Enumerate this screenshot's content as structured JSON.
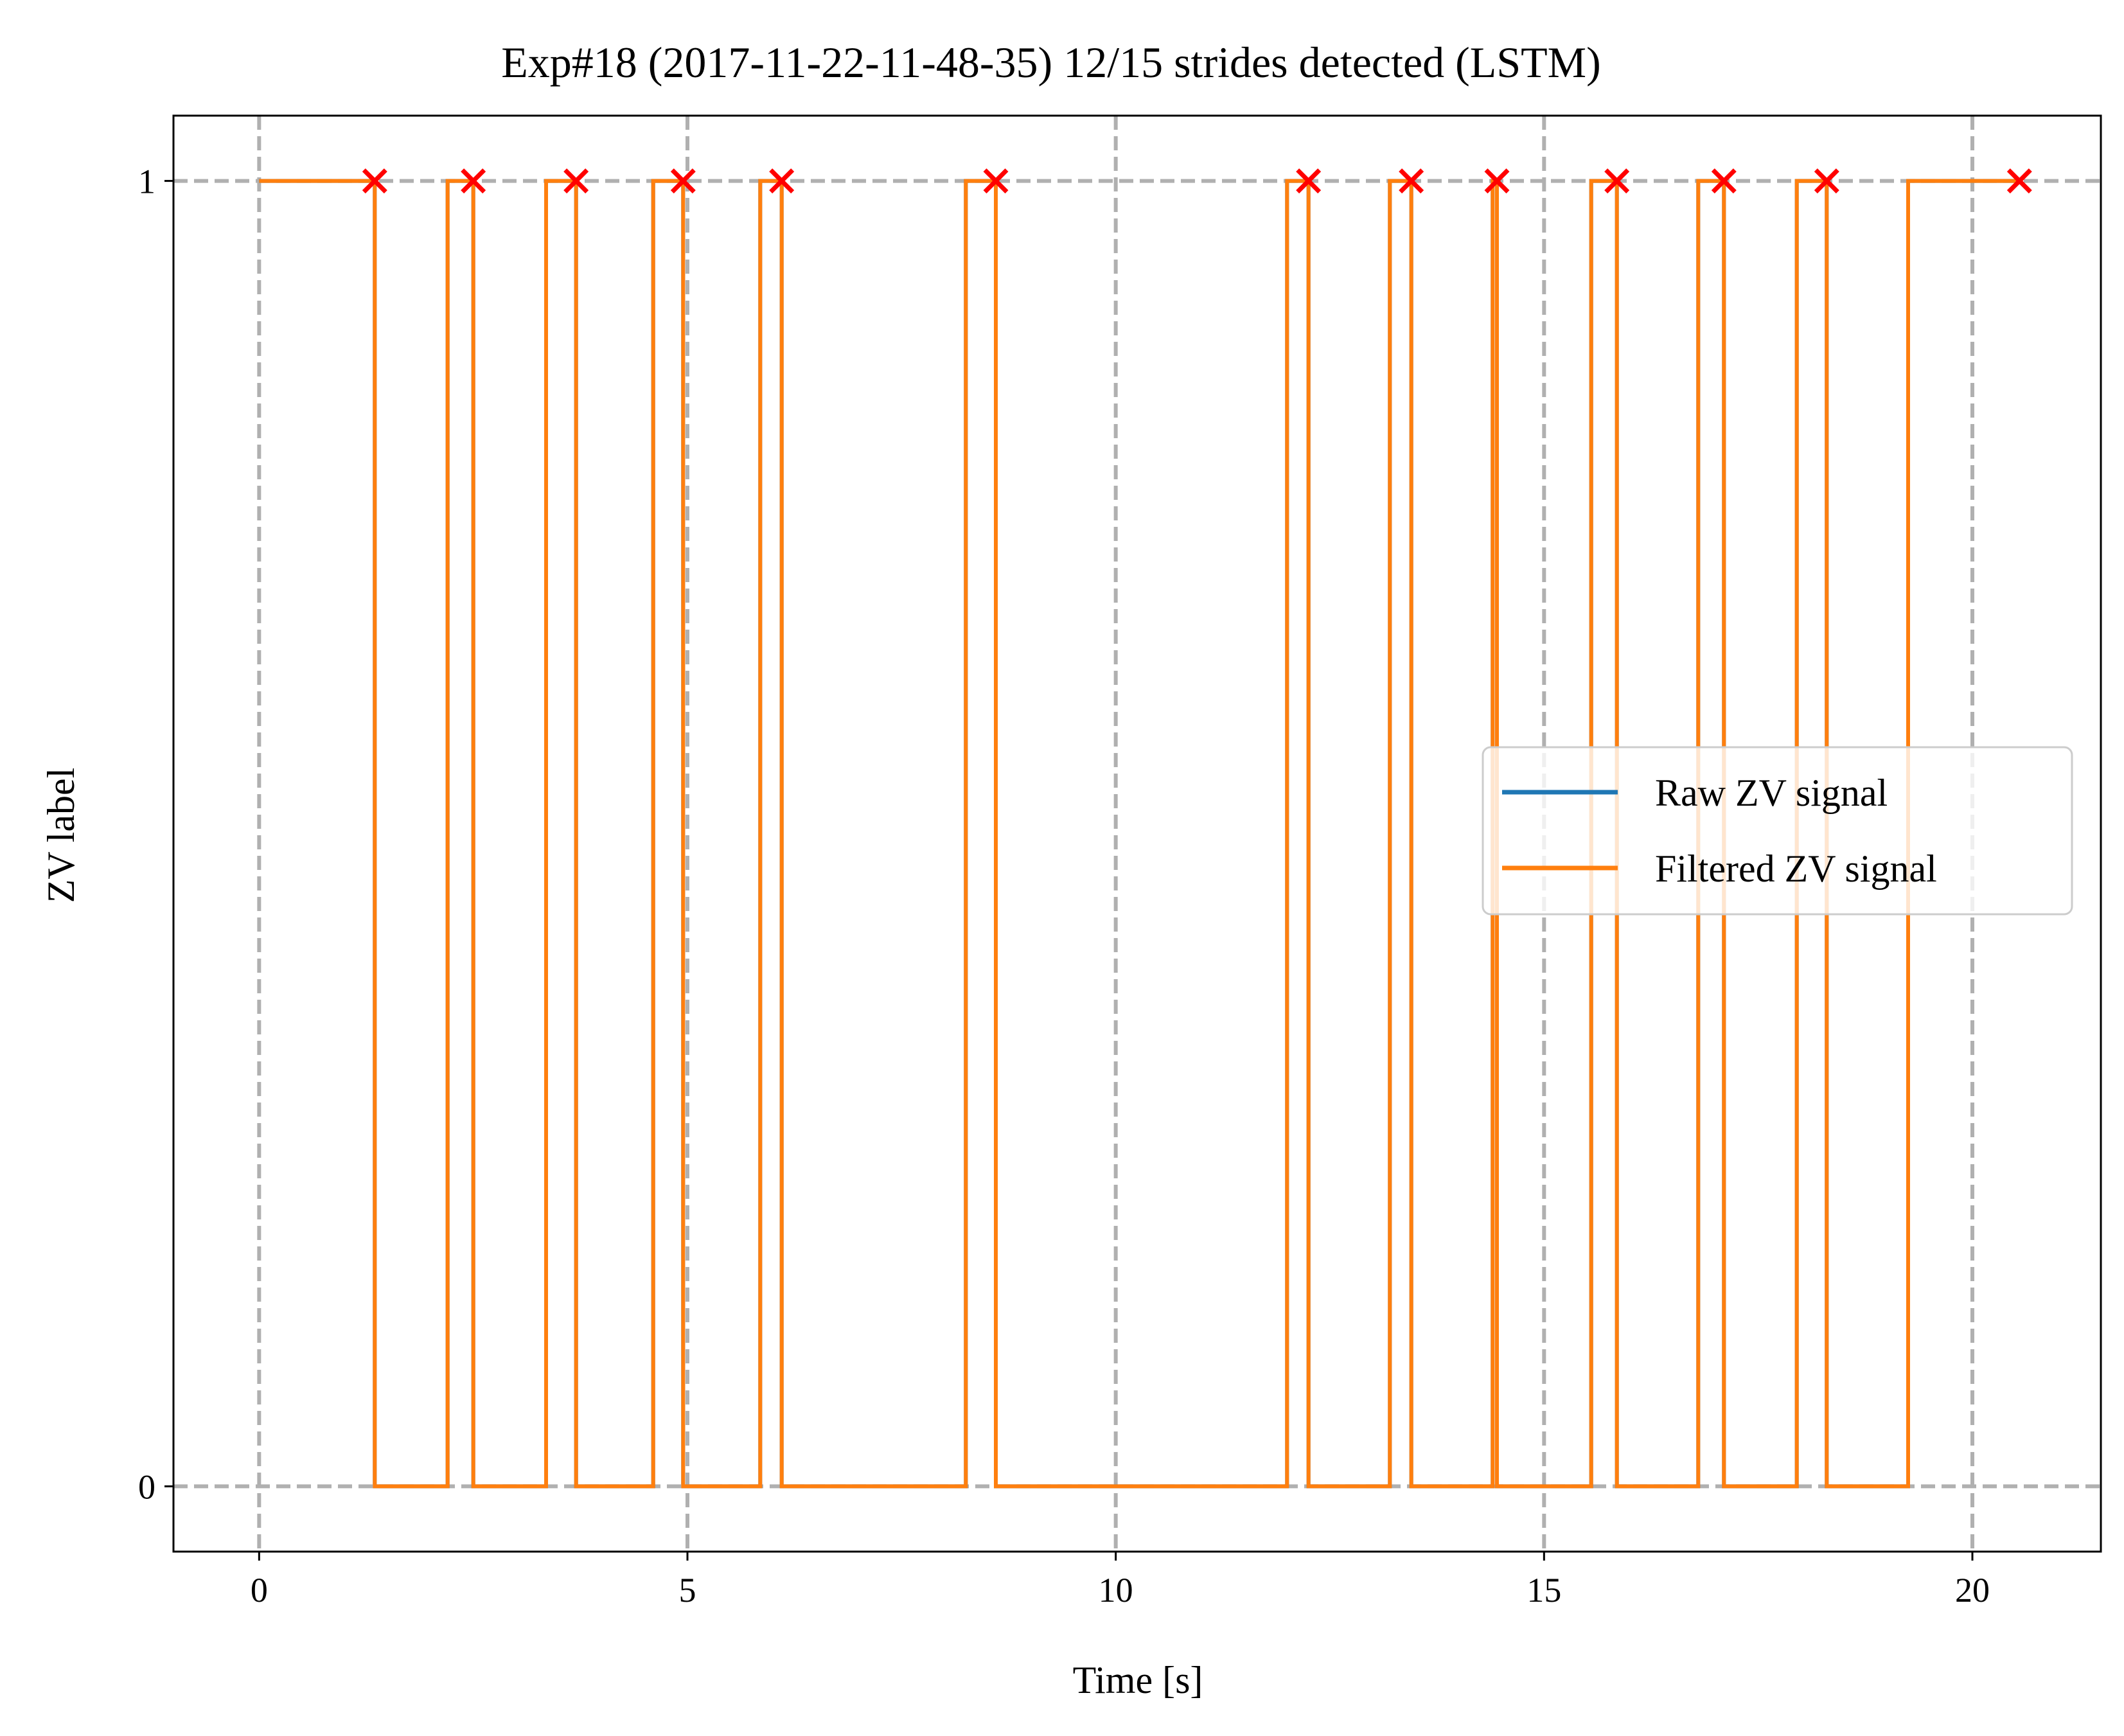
{
  "chart_data": {
    "type": "line",
    "title": "Exp#18 (2017-11-22-11-48-35) 12/15 strides detected (LSTM)",
    "xlabel": "Time [s]",
    "ylabel": "ZV label",
    "xlim": [
      -1.0,
      21.5
    ],
    "ylim": [
      -0.05,
      1.05
    ],
    "xticks": [
      0,
      5,
      10,
      15,
      20
    ],
    "yticks": [
      0,
      1
    ],
    "grid": true,
    "legend_position": "center-right",
    "series": [
      {
        "name": "Raw ZV signal",
        "color": "#1f77b4",
        "style": "step",
        "transitions": [
          [
            0,
            1
          ],
          [
            1.35,
            0
          ],
          [
            2.2,
            1
          ],
          [
            2.5,
            0
          ],
          [
            3.35,
            1
          ],
          [
            3.7,
            0
          ],
          [
            4.6,
            1
          ],
          [
            4.95,
            0
          ],
          [
            5.85,
            1
          ],
          [
            6.1,
            0
          ],
          [
            8.25,
            1
          ],
          [
            8.6,
            0
          ],
          [
            12.0,
            1
          ],
          [
            12.25,
            0
          ],
          [
            13.2,
            1
          ],
          [
            13.45,
            0
          ],
          [
            14.4,
            1
          ],
          [
            14.45,
            0
          ],
          [
            15.55,
            1
          ],
          [
            15.85,
            0
          ],
          [
            16.8,
            1
          ],
          [
            17.1,
            0
          ],
          [
            17.95,
            1
          ],
          [
            18.3,
            0
          ],
          [
            19.25,
            1
          ],
          [
            20.55,
            1
          ]
        ]
      },
      {
        "name": "Filtered ZV signal",
        "color": "#ff7f0e",
        "style": "step",
        "transitions": [
          [
            0,
            1
          ],
          [
            1.35,
            0
          ],
          [
            2.2,
            1
          ],
          [
            2.5,
            0
          ],
          [
            3.35,
            1
          ],
          [
            3.7,
            0
          ],
          [
            4.6,
            1
          ],
          [
            4.95,
            0
          ],
          [
            5.85,
            1
          ],
          [
            6.1,
            0
          ],
          [
            8.25,
            1
          ],
          [
            8.6,
            0
          ],
          [
            12.0,
            1
          ],
          [
            12.25,
            0
          ],
          [
            13.2,
            1
          ],
          [
            13.45,
            0
          ],
          [
            14.4,
            1
          ],
          [
            14.45,
            0
          ],
          [
            15.55,
            1
          ],
          [
            15.85,
            0
          ],
          [
            16.8,
            1
          ],
          [
            17.1,
            0
          ],
          [
            17.95,
            1
          ],
          [
            18.3,
            0
          ],
          [
            19.25,
            1
          ],
          [
            20.55,
            1
          ]
        ]
      }
    ],
    "stride_markers": {
      "color": "#ff0000",
      "marker": "x",
      "x": [
        1.35,
        2.5,
        3.7,
        4.95,
        6.1,
        8.6,
        12.25,
        13.45,
        14.45,
        15.85,
        17.1,
        18.3,
        20.55
      ],
      "y": 1
    }
  }
}
